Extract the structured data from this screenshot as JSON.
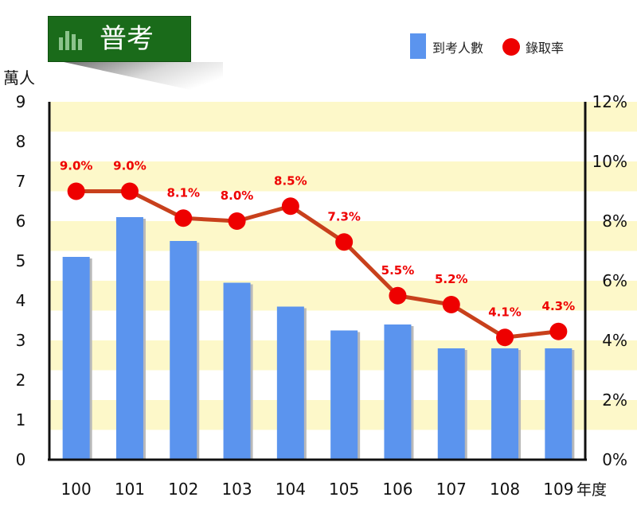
{
  "chart_data": {
    "type": "bar",
    "title": "普考",
    "categories": [
      "100",
      "101",
      "102",
      "103",
      "104",
      "105",
      "106",
      "107",
      "108",
      "109"
    ],
    "series": [
      {
        "name": "到考人數",
        "type": "bar",
        "axis": "left",
        "color": "#5b94ee",
        "values": [
          5.1,
          6.1,
          5.5,
          4.45,
          3.85,
          3.25,
          3.4,
          2.8,
          2.8,
          2.8
        ]
      },
      {
        "name": "錄取率",
        "type": "line",
        "axis": "right",
        "color": "#ee0000",
        "line_color": "#c8401c",
        "values": [
          9.0,
          9.0,
          8.1,
          8.0,
          8.5,
          7.3,
          5.5,
          5.2,
          4.1,
          4.3
        ],
        "labels": [
          "9.0%",
          "9.0%",
          "8.1%",
          "8.0%",
          "8.5%",
          "7.3%",
          "5.5%",
          "5.2%",
          "4.1%",
          "4.3%"
        ]
      }
    ],
    "xlabel": "年度",
    "ylabel": "萬人",
    "ylim": [
      0,
      9
    ],
    "y_ticks": [
      "0",
      "1",
      "2",
      "3",
      "4",
      "5",
      "6",
      "7",
      "8",
      "9"
    ],
    "y2lim": [
      0,
      12
    ],
    "y2_ticks": [
      "0%",
      "2%",
      "4%",
      "6%",
      "8%",
      "10%",
      "12%"
    ],
    "legend_position": "top-right",
    "band_color": "#fdf8c9"
  }
}
